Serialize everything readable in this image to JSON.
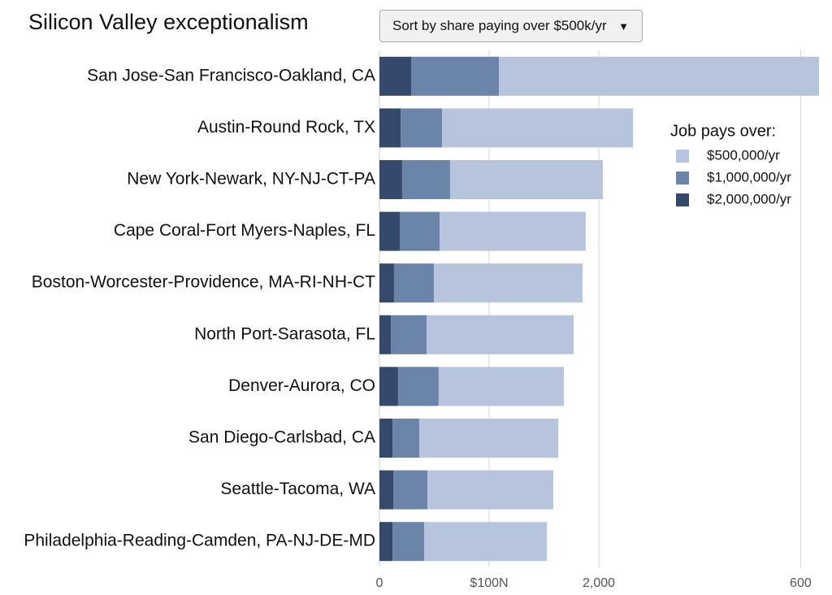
{
  "chart_data": {
    "type": "stacked-bar-horizontal",
    "title": "Silicon Valley exceptionalism",
    "dropdown": "Sort by share paying over $500k/yr",
    "legend_title": "Job pays over:",
    "categories": [
      "San Jose-San Francisco-Oakland, CA",
      "Austin-Round Rock, TX",
      "New York-Newark, NY-NJ-CT-PA",
      "Cape Coral-Fort Myers-Naples, FL",
      "Boston-Worcester-Providence, MA-RI-NH-CT",
      "North Port-Sarasota, FL",
      "Denver-Aurora, CO",
      "San Diego-Carlsbad, CA",
      "Seattle-Tacoma, WA",
      "Philadelphia-Reading-Camden, PA-NJ-DE-MD"
    ],
    "series": [
      {
        "name": "$2,000,000/yr",
        "color": "#34496b",
        "values": [
          289,
          193,
          207,
          185,
          133,
          104,
          170,
          119,
          126,
          119
        ]
      },
      {
        "name": "$1,000,000/yr",
        "color": "#6a84aa",
        "values": [
          800,
          378,
          437,
          363,
          363,
          326,
          370,
          244,
          311,
          289
        ]
      },
      {
        "name": "$500,000/yr",
        "color": "#b7c4dd",
        "values": [
          2919,
          1741,
          1393,
          1333,
          1356,
          1341,
          1141,
          1267,
          1148,
          1119
        ]
      }
    ],
    "xlim": [
      0,
      4000
    ],
    "xticks": [
      0,
      {
        "value": 1000,
        "label": "$100N"
      },
      {
        "value": 2000,
        "label": "2,000"
      },
      {
        "value": 3840,
        "label": "600"
      }
    ],
    "grid": true
  }
}
